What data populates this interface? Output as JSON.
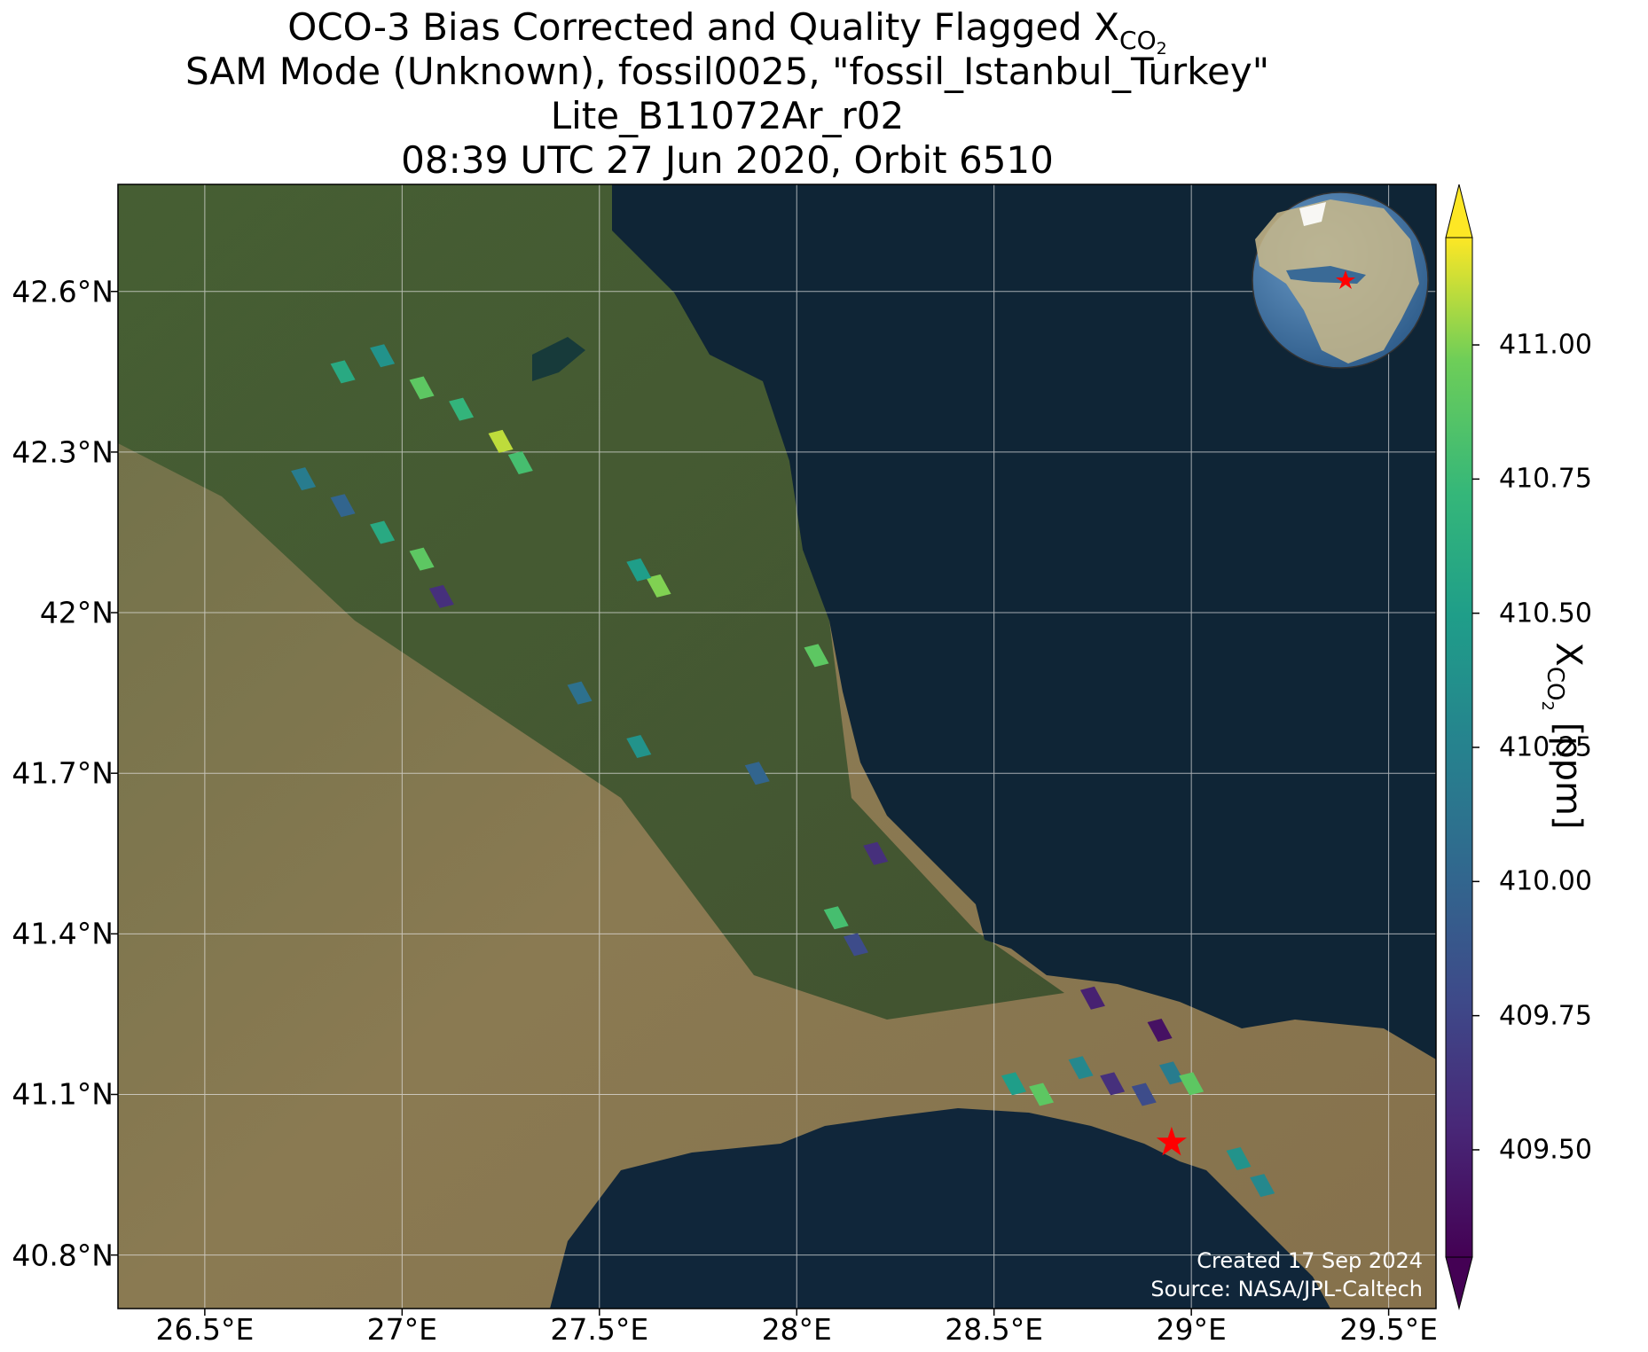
{
  "title": {
    "line1_prefix": "OCO-3 Bias Corrected and Quality Flagged X",
    "line1_sub": "CO",
    "line1_subsub": "2",
    "line2": "SAM Mode (Unknown), fossil0025, \"fossil_Istanbul_Turkey\"",
    "line3": "Lite_B11072Ar_r02",
    "line4": "08:39 UTC 27 Jun 2020, Orbit 6510"
  },
  "map": {
    "lon_range": [
      26.28,
      29.62
    ],
    "lat_range": [
      40.7,
      42.8
    ],
    "x_ticks": [
      "26.5°E",
      "27°E",
      "27.5°E",
      "28°E",
      "28.5°E",
      "29°E",
      "29.5°E"
    ],
    "x_tick_values": [
      26.5,
      27.0,
      27.5,
      28.0,
      28.5,
      29.0,
      29.5
    ],
    "y_ticks": [
      "42.6°N",
      "42.3°N",
      "42°N",
      "41.7°N",
      "41.4°N",
      "41.1°N",
      "40.8°N"
    ],
    "y_tick_values": [
      42.6,
      42.3,
      42.0,
      41.7,
      41.4,
      41.1,
      40.8
    ],
    "gridlines": true,
    "basemap": "satellite imagery",
    "target_marker": {
      "lon": 28.95,
      "lat": 41.01,
      "symbol": "star",
      "color": "#ff0000"
    },
    "inset_globe": {
      "placement": "top-right",
      "marker": "star",
      "marker_color": "#ff0000"
    }
  },
  "colorbar": {
    "label_prefix": "X",
    "label_sub": "CO",
    "label_subsub": "2",
    "label_suffix": " [ppm]",
    "ticks": [
      "411.00",
      "410.75",
      "410.50",
      "410.25",
      "410.00",
      "409.75",
      "409.50"
    ],
    "tick_values": [
      411.0,
      410.75,
      410.5,
      410.25,
      410.0,
      409.75,
      409.5
    ],
    "range": [
      409.3,
      411.2
    ],
    "extend": "both",
    "colormap": "viridis"
  },
  "credits": {
    "created": "Created 17 Sep 2024",
    "source": "Source: NASA/JPL-Caltech"
  },
  "chart_data": {
    "type": "heatmap",
    "title": "OCO-3 Bias Corrected and Quality Flagged XCO2",
    "colorbar_label": "XCO2 [ppm]",
    "soundings": [
      {
        "lon": 26.85,
        "lat": 42.45,
        "xco2": 410.6
      },
      {
        "lon": 26.95,
        "lat": 42.48,
        "xco2": 410.4
      },
      {
        "lon": 27.05,
        "lat": 42.42,
        "xco2": 410.9
      },
      {
        "lon": 27.15,
        "lat": 42.38,
        "xco2": 410.7
      },
      {
        "lon": 27.25,
        "lat": 42.32,
        "xco2": 411.1
      },
      {
        "lon": 27.3,
        "lat": 42.28,
        "xco2": 410.8
      },
      {
        "lon": 26.75,
        "lat": 42.25,
        "xco2": 410.2
      },
      {
        "lon": 26.85,
        "lat": 42.2,
        "xco2": 410.0
      },
      {
        "lon": 26.95,
        "lat": 42.15,
        "xco2": 410.6
      },
      {
        "lon": 27.05,
        "lat": 42.1,
        "xco2": 410.9
      },
      {
        "lon": 27.1,
        "lat": 42.03,
        "xco2": 409.6
      },
      {
        "lon": 27.65,
        "lat": 42.05,
        "xco2": 411.0
      },
      {
        "lon": 27.6,
        "lat": 42.08,
        "xco2": 410.5
      },
      {
        "lon": 27.45,
        "lat": 41.85,
        "xco2": 410.1
      },
      {
        "lon": 27.6,
        "lat": 41.75,
        "xco2": 410.4
      },
      {
        "lon": 28.05,
        "lat": 41.92,
        "xco2": 410.9
      },
      {
        "lon": 27.9,
        "lat": 41.7,
        "xco2": 410.0
      },
      {
        "lon": 28.1,
        "lat": 41.43,
        "xco2": 410.8
      },
      {
        "lon": 28.15,
        "lat": 41.38,
        "xco2": 409.8
      },
      {
        "lon": 28.2,
        "lat": 41.55,
        "xco2": 409.6
      },
      {
        "lon": 28.55,
        "lat": 41.12,
        "xco2": 410.5
      },
      {
        "lon": 28.62,
        "lat": 41.1,
        "xco2": 410.9
      },
      {
        "lon": 28.72,
        "lat": 41.15,
        "xco2": 410.3
      },
      {
        "lon": 28.8,
        "lat": 41.12,
        "xco2": 409.6
      },
      {
        "lon": 28.88,
        "lat": 41.1,
        "xco2": 409.8
      },
      {
        "lon": 28.95,
        "lat": 41.14,
        "xco2": 410.2
      },
      {
        "lon": 29.0,
        "lat": 41.12,
        "xco2": 410.9
      },
      {
        "lon": 28.75,
        "lat": 41.28,
        "xco2": 409.5
      },
      {
        "lon": 28.92,
        "lat": 41.22,
        "xco2": 409.4
      },
      {
        "lon": 29.12,
        "lat": 40.98,
        "xco2": 410.4
      },
      {
        "lon": 29.18,
        "lat": 40.93,
        "xco2": 410.3
      }
    ]
  }
}
